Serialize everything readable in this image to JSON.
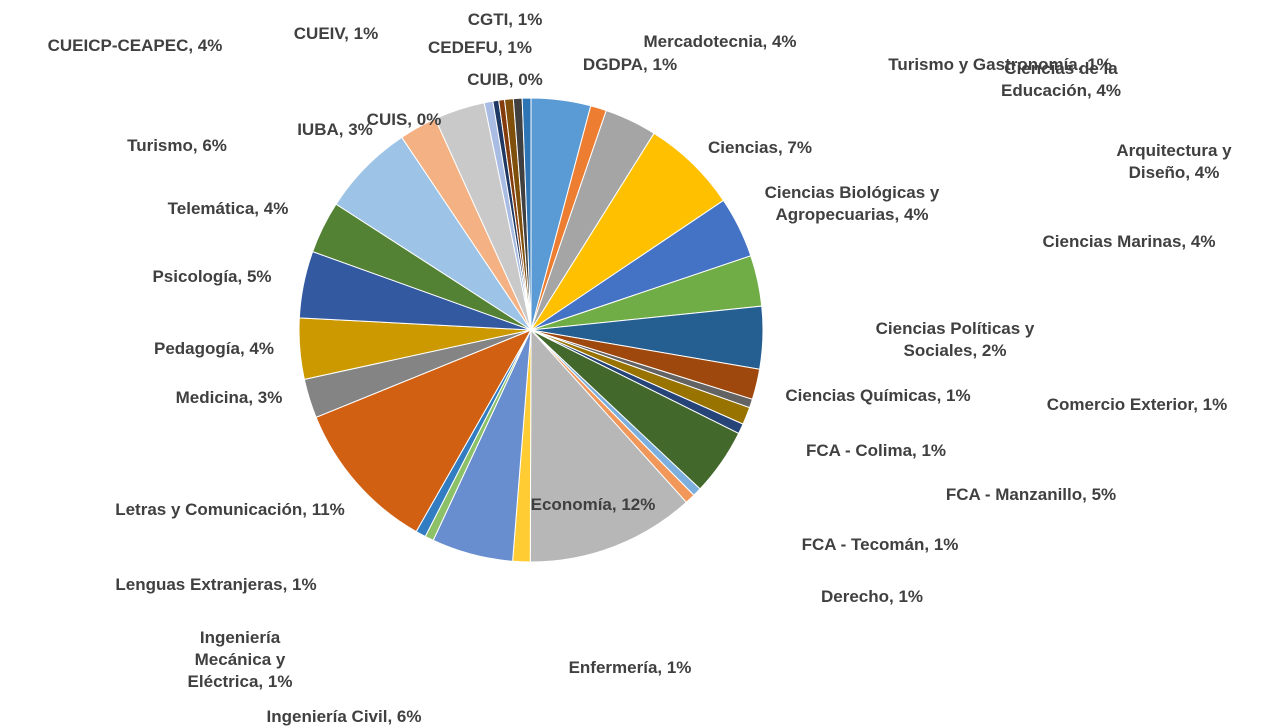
{
  "chart_data": {
    "type": "pie",
    "categories": [
      "Mercadotecnia",
      "Turismo y Gastronomía",
      "Arquitectura y Diseño",
      "Ciencias",
      "Ciencias Biológicas y Agropecuarias",
      "Ciencias de la Educación",
      "Ciencias Marinas",
      "Ciencias Políticas y Sociales",
      "Ciencias Químicas",
      "Comercio Exterior",
      "FCA - Colima",
      "FCA - Manzanillo",
      "FCA - Tecomán",
      "Derecho",
      "Economía",
      "Enfermería",
      "Ingeniería Civil",
      "Ingeniería Mecánica y Eléctrica",
      "Lenguas Extranjeras",
      "Letras y Comunicación",
      "Medicina",
      "Pedagogía",
      "Psicología",
      "Telemática",
      "Turismo",
      "IUBA",
      "CUEICP-CEAPEC",
      "CUEIV",
      "CUIS",
      "CUIB",
      "CEDEFU",
      "CGTI",
      "DGDPA"
    ],
    "values": [
      4.1,
      1.1,
      3.6,
      6.6,
      4.2,
      3.5,
      4.3,
      2.1,
      0.6,
      1.2,
      0.7,
      4.6,
      0.6,
      0.7,
      11.6,
      1.2,
      5.6,
      0.6,
      0.7,
      10.5,
      2.7,
      4.2,
      4.6,
      3.6,
      6.4,
      2.6,
      3.5,
      0.6,
      0.4,
      0.4,
      0.6,
      0.6,
      0.6
    ],
    "value_labels": [
      "Mercadotecnia, 4%",
      "Turismo y Gastronomía, 1%",
      "Arquitectura y Diseño, 4%",
      "Ciencias, 7%",
      "Ciencias Biológicas y Agropecuarias, 4%",
      "Ciencias de la Educación, 4%",
      "Ciencias Marinas, 4%",
      "Ciencias Políticas y Sociales, 2%",
      "Ciencias Químicas, 1%",
      "Comercio Exterior, 1%",
      "FCA - Colima, 1%",
      "FCA - Manzanillo, 5%",
      "FCA - Tecomán, 1%",
      "Derecho, 1%",
      "Economía, 12%",
      "Enfermería, 1%",
      "Ingeniería Civil, 6%",
      "Ingeniería Mecánica y Eléctrica, 1%",
      "Lenguas Extranjeras, 1%",
      "Letras y Comunicación, 11%",
      "Medicina, 3%",
      "Pedagogía, 4%",
      "Psicología, 5%",
      "Telemática, 4%",
      "Turismo, 6%",
      "IUBA, 3%",
      "CUEICP-CEAPEC, 4%",
      "CUEIV, 1%",
      "CUIS, 0%",
      "CUIB, 0%",
      "CEDEFU, 1%",
      "CGTI, 1%",
      "DGDPA, 1%"
    ],
    "colors": [
      "#5B9BD5",
      "#ED7D31",
      "#A5A5A5",
      "#FFC000",
      "#4472C4",
      "#70AD47",
      "#255E91",
      "#9E480E",
      "#636363",
      "#997300",
      "#264478",
      "#43682B",
      "#7CAFDD",
      "#F1975A",
      "#B7B7B7",
      "#FFCD33",
      "#698ED0",
      "#8CC168",
      "#327DC2",
      "#D26012",
      "#848484",
      "#CC9A00",
      "#335AA1",
      "#548235",
      "#9DC3E6",
      "#F4B183",
      "#C9C9C9",
      "#A9BCE3",
      "#1F3864",
      "#843C0C",
      "#7F4F0C",
      "#404040",
      "#2E75B6"
    ]
  }
}
